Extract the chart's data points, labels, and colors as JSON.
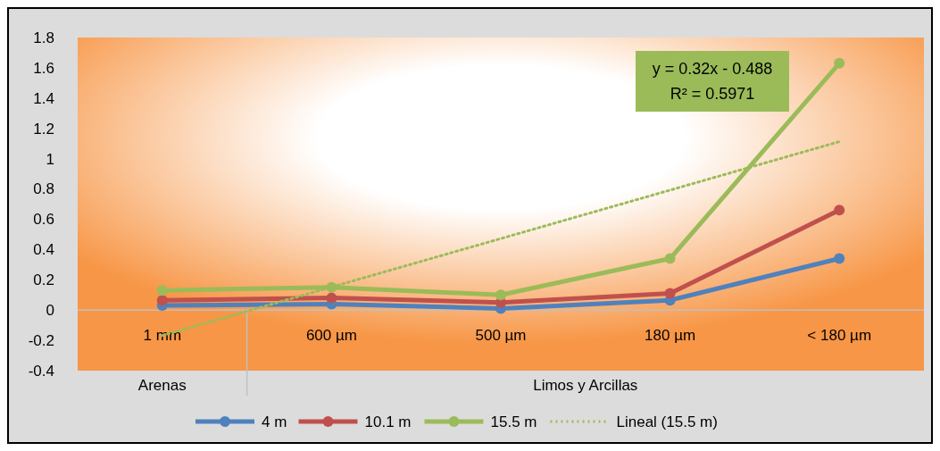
{
  "chart_data": {
    "type": "line",
    "categories": [
      "1 mm",
      "600 µm",
      "500 µm",
      "180 µm",
      "< 180 µm"
    ],
    "series": [
      {
        "name": "4 m",
        "color": "#4f81bd",
        "values": [
          0.03,
          0.04,
          0.01,
          0.065,
          0.34
        ]
      },
      {
        "name": "10.1 m",
        "color": "#c0504d",
        "values": [
          0.065,
          0.08,
          0.05,
          0.11,
          0.66
        ]
      },
      {
        "name": "15.5 m",
        "color": "#9bbb59",
        "values": [
          0.13,
          0.15,
          0.1,
          0.34,
          1.63
        ]
      },
      {
        "name": "Lineal (15.5 m)",
        "color": "#9bbb59",
        "values": [
          -0.168,
          0.152,
          0.472,
          0.792,
          1.112
        ],
        "line_style": "dotted",
        "marker": "none"
      }
    ],
    "ylim": [
      -0.4,
      1.8
    ],
    "yticks": [
      -0.4,
      -0.2,
      0,
      0.2,
      0.4,
      0.6,
      0.8,
      1,
      1.2,
      1.4,
      1.6,
      1.8
    ],
    "marker": "circle",
    "legend": "bottom",
    "grid": false,
    "annotations": [
      "y = 0.32x - 0.488",
      "R² = 0.5971",
      "Arenas",
      "Limos y Arcillas"
    ]
  }
}
